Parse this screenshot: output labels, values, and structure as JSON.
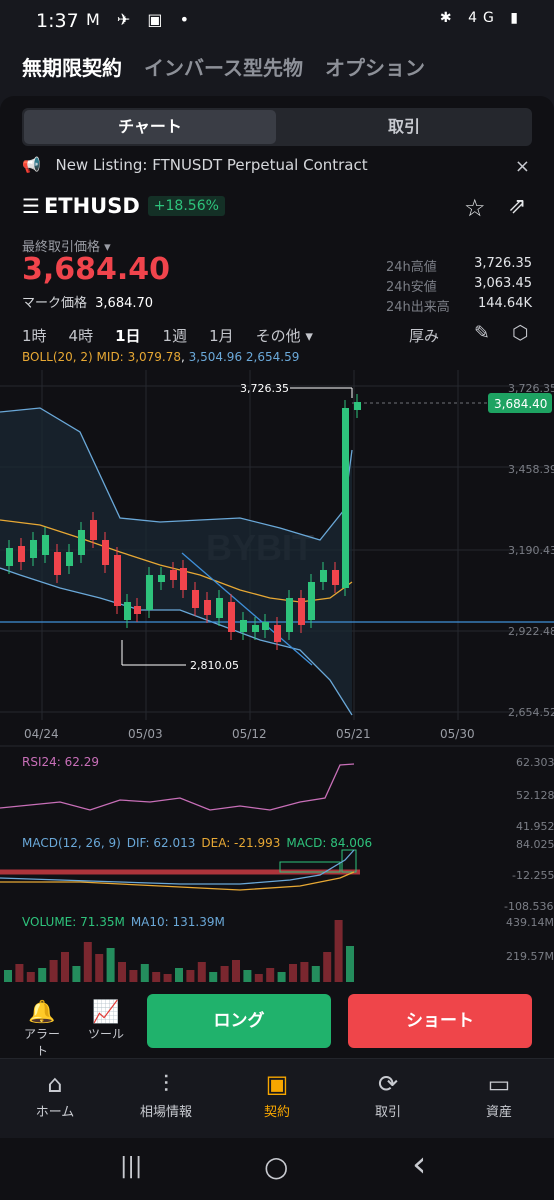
{
  "status_bar": {
    "time": "1:37",
    "left_icons": "M ✈ ▣ •",
    "right_icons": "✱ 4G ▮"
  },
  "top_tabs": [
    "無期限契約",
    "インバース型先物",
    "オプション"
  ],
  "segment": {
    "chart": "チャート",
    "trade": "取引"
  },
  "notice": {
    "text": "New Listing: FTNUSDT Perpetual Contract",
    "close": "×"
  },
  "pair": {
    "symbol": "ETHUSD",
    "change": "+18.56%"
  },
  "last_price_label": "最終取引価格 ▾",
  "last_price": "3,684.40",
  "mark_price_label": "マーク価格",
  "mark_price": "3,684.70",
  "stats": [
    {
      "k": "24h高値",
      "v": "3,726.35"
    },
    {
      "k": "24h安値",
      "v": "3,063.45"
    },
    {
      "k": "24h出来高",
      "v": "144.64K"
    }
  ],
  "timeframes": [
    "1時",
    "4時",
    "1日",
    "1週",
    "1月",
    "その他 ▾"
  ],
  "depth_label": "厚み",
  "boll": {
    "label": "BOLL(20, 2) MID:",
    "mid": "3,079.78",
    "upper": "3,504.96",
    "lower": "2,654.59"
  },
  "chart_data": {
    "type": "candlestick",
    "y_ticks": [
      "3,726.35",
      "3,458.39",
      "3,190.43",
      "2,922.48",
      "2,654.52"
    ],
    "x_ticks": [
      "04/24",
      "05/03",
      "05/12",
      "05/21",
      "05/30"
    ],
    "high_marker": "3,726.35",
    "low_marker": "2,810.05",
    "current_price": "3,684.40",
    "watermark": "BYBIT"
  },
  "rsi": {
    "label": "RSI24: 62.29",
    "ticks": [
      "62.303",
      "52.128",
      "41.952"
    ]
  },
  "macd": {
    "label": "MACD(12, 26, 9)",
    "dif": "DIF: 62.013",
    "dea": "DEA: -21.993",
    "macd": "MACD: 84.006",
    "ticks": [
      "84.025",
      "-12.255",
      "-108.536"
    ]
  },
  "volume": {
    "label": "VOLUME: 71.35M",
    "ma": "MA10: 131.39M",
    "ticks": [
      "439.14M",
      "219.57M"
    ]
  },
  "actions": {
    "alert": "アラート",
    "tool": "ツール",
    "long": "ロング",
    "short": "ショート"
  },
  "nav": [
    "ホーム",
    "相場情報",
    "契約",
    "取引",
    "資産"
  ],
  "sys": {
    "recent": "|||",
    "home": "○",
    "back": "‹"
  },
  "colors": {
    "up": "#2ec37c",
    "down": "#f0444c",
    "accent": "#f7a600"
  }
}
